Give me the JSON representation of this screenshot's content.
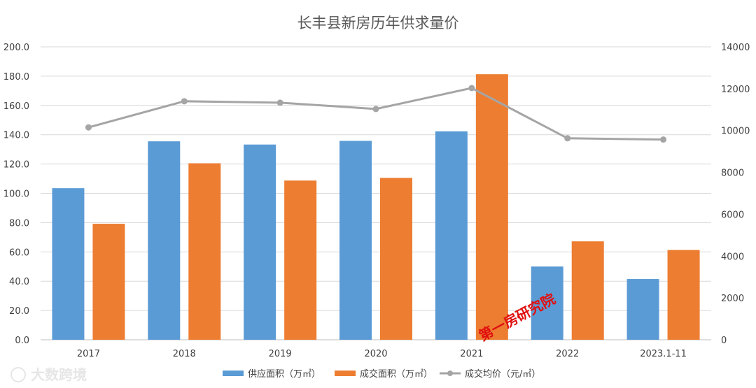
{
  "chart_data": {
    "type": "bar",
    "title": "长丰县新房历年供求量价",
    "categories": [
      "2017",
      "2018",
      "2019",
      "2020",
      "2021",
      "2022",
      "2023.1-11"
    ],
    "series": [
      {
        "name": "供应面积（万㎡）",
        "kind": "bar",
        "axis": "left",
        "color": "#5b9bd5",
        "values": [
          103.5,
          135.5,
          133.3,
          135.8,
          142.3,
          50.0,
          41.5
        ]
      },
      {
        "name": "成交面积（万㎡）",
        "kind": "bar",
        "axis": "left",
        "color": "#ed7d31",
        "values": [
          79.2,
          120.5,
          108.7,
          110.5,
          181.3,
          67.2,
          61.3
        ]
      },
      {
        "name": "成交均价（元/㎡）",
        "kind": "line",
        "axis": "right",
        "color": "#a5a5a5",
        "values": [
          10150,
          11400,
          11330,
          11030,
          12030,
          9630,
          9570
        ]
      }
    ],
    "y_left": {
      "min": 0,
      "max": 200,
      "step": 20,
      "tick_labels": [
        "0.0",
        "20.0",
        "40.0",
        "60.0",
        "80.0",
        "100.0",
        "120.0",
        "140.0",
        "160.0",
        "180.0",
        "200.0"
      ]
    },
    "y_right": {
      "min": 0,
      "max": 14000,
      "step": 2000,
      "tick_labels": [
        "0",
        "2000",
        "4000",
        "6000",
        "8000",
        "10000",
        "12000",
        "14000"
      ]
    },
    "grid": true,
    "legend_position": "bottom"
  },
  "watermarks": {
    "stamp": "第一房研究院",
    "source": "大数跨境"
  }
}
